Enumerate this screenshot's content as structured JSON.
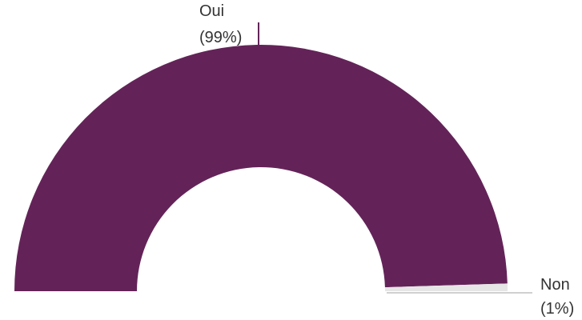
{
  "chart_data": {
    "type": "pie",
    "variant": "half-donut",
    "slices": [
      {
        "label": "Oui",
        "percent_label": "(99%)",
        "value": 99,
        "color": "#632358"
      },
      {
        "label": "Non",
        "percent_label": "(1%)",
        "value": 1,
        "color": "#e6e6e6"
      }
    ]
  }
}
